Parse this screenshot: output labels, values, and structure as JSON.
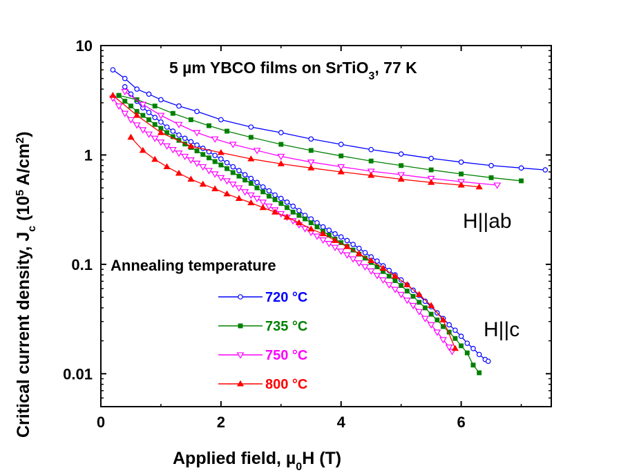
{
  "chart_data": {
    "type": "line",
    "title_prefix": "5 µm YBCO films on SrTiO",
    "title_sub": "3",
    "title_suffix": ", 77 K",
    "xlabel_main": "Applied field, µ",
    "xlabel_sub": "0",
    "xlabel_end": "H (T)",
    "ylabel_main": "Critical current density, J",
    "ylabel_sub": "c",
    "ylabel_mid": " (10",
    "ylabel_sup": "5",
    "ylabel_unit": " A/cm",
    "ylabel_sup2": "2",
    "ylabel_end": ")",
    "xlim": [
      0,
      7.5
    ],
    "ylim": [
      0.005,
      10
    ],
    "yscale": "log",
    "x_ticks": [
      0,
      2,
      4,
      6
    ],
    "x_tick_labels": [
      "0",
      "2",
      "4",
      "6"
    ],
    "y_ticks": [
      0.01,
      0.1,
      1,
      10
    ],
    "y_tick_labels": [
      "0.01",
      "0.1",
      "1",
      "10"
    ],
    "annotations": [
      "H||ab",
      "H||c"
    ],
    "legend_title": "Annealing temperature",
    "legend_placement": "lower-left",
    "series": [
      {
        "name": "720 °C",
        "color": "#0000ff",
        "marker": "circle-open",
        "ab": {
          "x": [
            0.2,
            0.4,
            0.6,
            0.8,
            1.0,
            1.3,
            1.6,
            2.0,
            2.5,
            3.0,
            3.5,
            4.0,
            4.5,
            5.0,
            5.5,
            6.0,
            6.5,
            7.0,
            7.4
          ],
          "y": [
            6.0,
            5.0,
            4.0,
            3.6,
            3.2,
            2.8,
            2.5,
            2.1,
            1.8,
            1.6,
            1.4,
            1.25,
            1.12,
            1.02,
            0.93,
            0.86,
            0.8,
            0.76,
            0.73
          ]
        },
        "c": {
          "x": [
            0.4,
            0.5,
            0.6,
            0.7,
            0.8,
            0.9,
            1.0,
            1.1,
            1.2,
            1.3,
            1.4,
            1.5,
            1.6,
            1.7,
            1.8,
            1.9,
            2.0,
            2.1,
            2.2,
            2.3,
            2.4,
            2.5,
            2.6,
            2.7,
            2.8,
            2.9,
            3.0,
            3.1,
            3.2,
            3.3,
            3.4,
            3.5,
            3.6,
            3.7,
            3.8,
            3.9,
            4.0,
            4.1,
            4.2,
            4.3,
            4.4,
            4.5,
            4.6,
            4.7,
            4.8,
            4.9,
            5.0,
            5.1,
            5.2,
            5.3,
            5.4,
            5.5,
            5.6,
            5.7,
            5.8,
            5.9,
            6.0,
            6.1,
            6.2,
            6.3,
            6.4,
            6.45
          ],
          "y": [
            4.2,
            3.6,
            3.1,
            2.7,
            2.45,
            2.2,
            2.0,
            1.8,
            1.65,
            1.52,
            1.42,
            1.32,
            1.23,
            1.15,
            1.07,
            0.99,
            0.92,
            0.85,
            0.78,
            0.72,
            0.66,
            0.61,
            0.56,
            0.51,
            0.47,
            0.43,
            0.4,
            0.37,
            0.34,
            0.31,
            0.28,
            0.26,
            0.24,
            0.22,
            0.205,
            0.19,
            0.178,
            0.165,
            0.152,
            0.14,
            0.128,
            0.117,
            0.107,
            0.097,
            0.088,
            0.08,
            0.072,
            0.065,
            0.058,
            0.052,
            0.046,
            0.041,
            0.036,
            0.032,
            0.028,
            0.025,
            0.022,
            0.019,
            0.017,
            0.015,
            0.0135,
            0.013
          ]
        }
      },
      {
        "name": "735 °C",
        "color": "#008000",
        "marker": "square-filled",
        "ab": {
          "x": [
            0.3,
            0.6,
            0.9,
            1.2,
            1.5,
            1.8,
            2.1,
            2.5,
            3.0,
            3.5,
            4.0,
            4.5,
            5.0,
            5.5,
            6.0,
            6.5,
            7.0
          ],
          "y": [
            3.5,
            3.2,
            2.8,
            2.4,
            2.1,
            1.85,
            1.65,
            1.45,
            1.25,
            1.1,
            0.98,
            0.88,
            0.8,
            0.73,
            0.67,
            0.62,
            0.58
          ]
        },
        "c": {
          "x": [
            0.3,
            0.4,
            0.5,
            0.6,
            0.7,
            0.8,
            0.9,
            1.0,
            1.1,
            1.2,
            1.3,
            1.4,
            1.5,
            1.6,
            1.7,
            1.8,
            1.9,
            2.0,
            2.1,
            2.2,
            2.3,
            2.4,
            2.5,
            2.6,
            2.7,
            2.8,
            2.9,
            3.0,
            3.1,
            3.2,
            3.3,
            3.4,
            3.5,
            3.6,
            3.7,
            3.8,
            3.9,
            4.0,
            4.1,
            4.2,
            4.3,
            4.4,
            4.5,
            4.6,
            4.7,
            4.8,
            4.9,
            5.0,
            5.1,
            5.2,
            5.3,
            5.4,
            5.5,
            5.6,
            5.7,
            5.8,
            5.9,
            6.0,
            6.1,
            6.2,
            6.3
          ],
          "y": [
            3.5,
            3.1,
            2.8,
            2.5,
            2.3,
            2.1,
            1.9,
            1.75,
            1.6,
            1.47,
            1.36,
            1.26,
            1.17,
            1.09,
            1.01,
            0.94,
            0.87,
            0.81,
            0.75,
            0.69,
            0.64,
            0.59,
            0.55,
            0.5,
            0.46,
            0.42,
            0.39,
            0.36,
            0.33,
            0.3,
            0.28,
            0.26,
            0.24,
            0.22,
            0.2,
            0.185,
            0.17,
            0.158,
            0.146,
            0.135,
            0.124,
            0.114,
            0.104,
            0.095,
            0.086,
            0.078,
            0.071,
            0.064,
            0.057,
            0.051,
            0.045,
            0.04,
            0.035,
            0.031,
            0.027,
            0.024,
            0.021,
            0.018,
            0.0155,
            0.012,
            0.0102
          ]
        }
      },
      {
        "name": "750 °C",
        "color": "#ff00ff",
        "marker": "triangle-down-open",
        "ab": {
          "x": [
            0.4,
            0.7,
            1.0,
            1.3,
            1.6,
            1.9,
            2.2,
            2.6,
            3.0,
            3.5,
            4.0,
            4.5,
            5.0,
            5.5,
            6.0,
            6.6
          ],
          "y": [
            3.8,
            2.9,
            2.3,
            1.9,
            1.6,
            1.4,
            1.25,
            1.1,
            0.97,
            0.86,
            0.78,
            0.71,
            0.66,
            0.61,
            0.57,
            0.53
          ]
        },
        "c": {
          "x": [
            0.2,
            0.3,
            0.4,
            0.5,
            0.6,
            0.7,
            0.8,
            0.9,
            1.0,
            1.1,
            1.2,
            1.3,
            1.4,
            1.5,
            1.6,
            1.7,
            1.8,
            1.9,
            2.0,
            2.1,
            2.2,
            2.3,
            2.4,
            2.5,
            2.6,
            2.7,
            2.8,
            2.9,
            3.0,
            3.1,
            3.2,
            3.3,
            3.4,
            3.5,
            3.6,
            3.7,
            3.8,
            3.9,
            4.0,
            4.1,
            4.2,
            4.3,
            4.4,
            4.5,
            4.6,
            4.7,
            4.8,
            4.9,
            5.0,
            5.1,
            5.2,
            5.3,
            5.4,
            5.5,
            5.6,
            5.7,
            5.8,
            5.85
          ],
          "y": [
            3.3,
            2.8,
            2.4,
            2.1,
            1.88,
            1.7,
            1.55,
            1.42,
            1.31,
            1.21,
            1.12,
            1.04,
            0.97,
            0.9,
            0.84,
            0.78,
            0.72,
            0.67,
            0.62,
            0.58,
            0.54,
            0.5,
            0.46,
            0.43,
            0.4,
            0.37,
            0.34,
            0.315,
            0.29,
            0.27,
            0.25,
            0.23,
            0.212,
            0.196,
            0.181,
            0.167,
            0.155,
            0.143,
            0.132,
            0.122,
            0.112,
            0.103,
            0.095,
            0.087,
            0.079,
            0.072,
            0.065,
            0.059,
            0.053,
            0.047,
            0.042,
            0.037,
            0.032,
            0.028,
            0.024,
            0.0205,
            0.0175,
            0.016
          ]
        }
      },
      {
        "name": "800 °C",
        "color": "#ff0000",
        "marker": "triangle-up-filled",
        "ab": {
          "x": [
            0.2,
            0.6,
            1.0,
            1.5,
            2.0,
            2.5,
            3.0,
            3.5,
            4.0,
            4.5,
            5.0,
            5.5,
            6.0,
            6.3
          ],
          "y": [
            3.5,
            2.3,
            1.6,
            1.2,
            1.05,
            0.92,
            0.83,
            0.76,
            0.7,
            0.65,
            0.6,
            0.56,
            0.53,
            0.51
          ]
        },
        "c": {
          "x": [
            0.5,
            0.7,
            0.9,
            1.1,
            1.3,
            1.5,
            1.7,
            1.9,
            2.1,
            2.3,
            2.5,
            2.7,
            2.9,
            3.1,
            3.3,
            3.5,
            3.7,
            3.9,
            4.1,
            4.3,
            4.5,
            4.7,
            4.9,
            5.1,
            5.3,
            5.5,
            5.7,
            5.9
          ],
          "y": [
            1.45,
            1.1,
            0.91,
            0.78,
            0.68,
            0.6,
            0.54,
            0.49,
            0.44,
            0.4,
            0.365,
            0.33,
            0.3,
            0.27,
            0.24,
            0.21,
            0.19,
            0.165,
            0.145,
            0.125,
            0.108,
            0.092,
            0.078,
            0.065,
            0.053,
            0.042,
            0.031,
            0.017
          ]
        }
      }
    ]
  }
}
